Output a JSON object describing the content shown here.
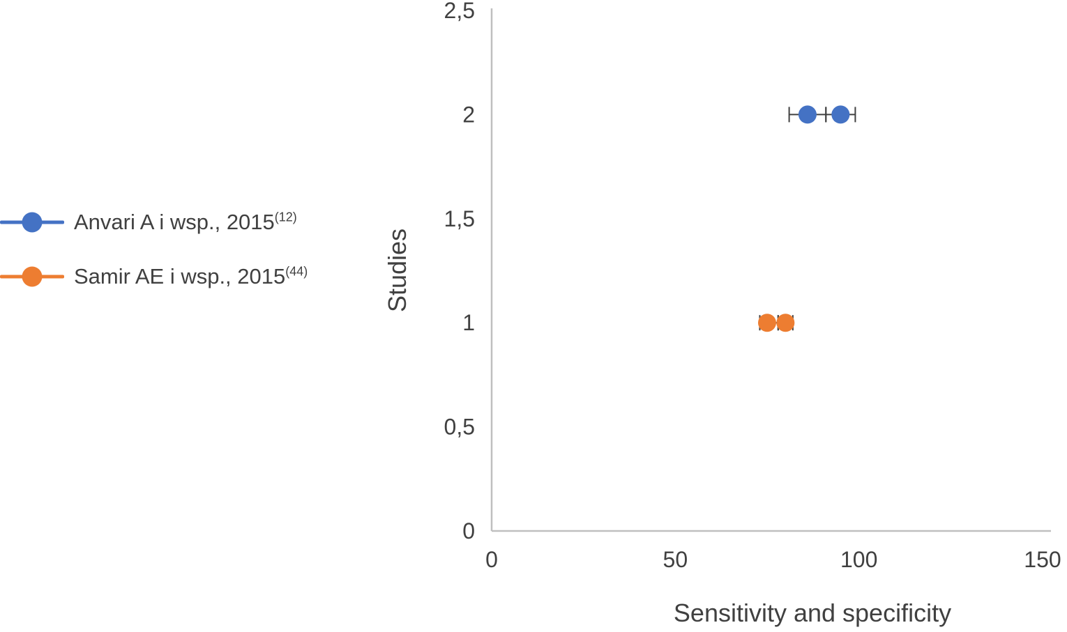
{
  "chart_data": {
    "type": "scatter",
    "title": "",
    "xlabel": "Sensitivity and specificity",
    "ylabel": "Studies",
    "xlim": [
      0,
      150
    ],
    "ylim": [
      0,
      2.5
    ],
    "grid": false,
    "legend_position": "left",
    "axis_line_color": "#BFBFBF",
    "error_bar_color": "#404040",
    "text_color": "#404040",
    "xticks": [
      {
        "value": 0,
        "label": "0"
      },
      {
        "value": 50,
        "label": "50"
      },
      {
        "value": 100,
        "label": "100"
      },
      {
        "value": 150,
        "label": "150"
      }
    ],
    "yticks": [
      {
        "value": 0,
        "label": "0"
      },
      {
        "value": 0.5,
        "label": "0,5"
      },
      {
        "value": 1,
        "label": "1"
      },
      {
        "value": 1.5,
        "label": "1,5"
      },
      {
        "value": 2,
        "label": "2"
      },
      {
        "value": 2.5,
        "label": "2,5"
      }
    ],
    "series": [
      {
        "name": "Anvari A i wsp., 2015",
        "ref": "(12)",
        "color": "#4472C4",
        "marker": "circle",
        "y": 2,
        "points": [
          {
            "x": 86,
            "y": 2,
            "err_low": 81,
            "err_high": 91
          },
          {
            "x": 95,
            "y": 2,
            "err_low": 91,
            "err_high": 99
          }
        ]
      },
      {
        "name": "Samir AE i wsp., 2015",
        "ref": "(44)",
        "color": "#ED7D31",
        "marker": "circle",
        "y": 1,
        "points": [
          {
            "x": 75,
            "y": 1,
            "err_low": 73,
            "err_high": 78
          },
          {
            "x": 80,
            "y": 1,
            "err_low": 78,
            "err_high": 82
          }
        ]
      }
    ]
  }
}
